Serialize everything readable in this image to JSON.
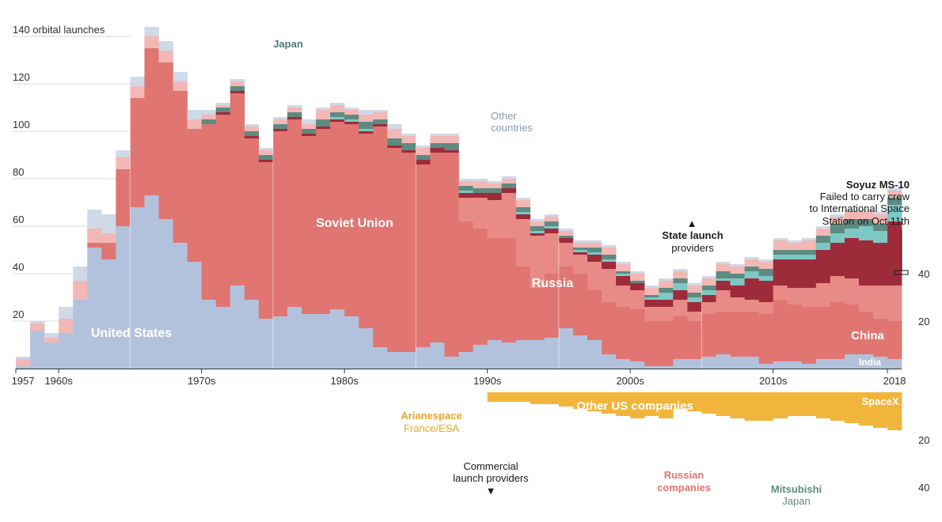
{
  "chart_data": {
    "type": "area",
    "title": "",
    "years": [
      1957,
      1958,
      1959,
      1960,
      1961,
      1962,
      1963,
      1964,
      1965,
      1966,
      1967,
      1968,
      1969,
      1970,
      1971,
      1972,
      1973,
      1974,
      1975,
      1976,
      1977,
      1978,
      1979,
      1980,
      1981,
      1982,
      1983,
      1984,
      1985,
      1986,
      1987,
      1988,
      1989,
      1990,
      1991,
      1992,
      1993,
      1994,
      1995,
      1996,
      1997,
      1998,
      1999,
      2000,
      2001,
      2002,
      2003,
      2004,
      2005,
      2006,
      2007,
      2008,
      2009,
      2010,
      2011,
      2012,
      2013,
      2014,
      2015,
      2016,
      2017,
      2018
    ],
    "state": {
      "ylabel": "140 orbital launches",
      "ylim": [
        0,
        140
      ],
      "yticks": [
        20,
        40,
        60,
        80,
        100,
        120
      ],
      "right_yticks": [
        20,
        40
      ],
      "series": [
        {
          "name": "United States",
          "color": "#b3c2dc",
          "values": [
            1,
            16,
            11,
            15,
            29,
            51,
            46,
            60,
            68,
            73,
            63,
            53,
            45,
            29,
            26,
            35,
            29,
            21,
            22,
            26,
            23,
            23,
            25,
            22,
            17,
            9,
            7,
            7,
            9,
            11,
            5,
            7,
            10,
            12,
            11,
            12,
            12,
            13,
            17,
            14,
            12,
            6,
            4,
            3,
            1,
            1,
            4,
            4,
            5,
            6,
            5,
            5,
            2,
            3,
            3,
            2,
            4,
            4,
            6,
            6,
            5,
            4
          ]
        },
        {
          "name": "Soviet Union",
          "color": "#e07571",
          "values": [
            0,
            0,
            0,
            0,
            0,
            2,
            7,
            24,
            46,
            62,
            66,
            64,
            56,
            74,
            81,
            81,
            68,
            66,
            78,
            79,
            75,
            78,
            79,
            81,
            82,
            93,
            86,
            84,
            77,
            80,
            86,
            55,
            49,
            43,
            44,
            31,
            22,
            27,
            26,
            26,
            21,
            22,
            22,
            22,
            19,
            19,
            18,
            16,
            18,
            18,
            19,
            19,
            21,
            26,
            24,
            24,
            22,
            24,
            21,
            18,
            16,
            16
          ]
        },
        {
          "name": "Russia",
          "color": "#e88b87",
          "values": [
            0,
            0,
            0,
            0,
            0,
            0,
            0,
            0,
            0,
            0,
            0,
            0,
            0,
            0,
            0,
            0,
            0,
            0,
            0,
            0,
            0,
            0,
            0,
            0,
            0,
            0,
            0,
            0,
            0,
            0,
            0,
            10,
            13,
            16,
            19,
            20,
            22,
            17,
            10,
            8,
            12,
            14,
            9,
            8,
            6,
            6,
            7,
            4,
            5,
            9,
            6,
            5,
            5,
            6,
            7,
            8,
            10,
            11,
            11,
            11,
            14,
            15
          ]
        },
        {
          "name": "China",
          "color": "#9e2b3a",
          "values": [
            0,
            0,
            0,
            0,
            0,
            0,
            0,
            0,
            0,
            0,
            0,
            0,
            0,
            0,
            1,
            1,
            1,
            1,
            1,
            1,
            1,
            1,
            1,
            1,
            1,
            1,
            1,
            1,
            2,
            2,
            1,
            2,
            2,
            3,
            2,
            2,
            1,
            2,
            2,
            1,
            3,
            3,
            4,
            3,
            3,
            3,
            4,
            4,
            3,
            4,
            5,
            9,
            9,
            11,
            12,
            12,
            14,
            14,
            17,
            19,
            18,
            27
          ]
        },
        {
          "name": "India",
          "color": "#7dc7c5",
          "values": [
            0,
            0,
            0,
            0,
            0,
            0,
            0,
            0,
            0,
            0,
            0,
            0,
            0,
            0,
            0,
            0,
            0,
            0,
            0,
            0,
            0,
            0,
            1,
            1,
            1,
            0,
            0,
            0,
            0,
            0,
            0,
            1,
            0,
            0,
            0,
            1,
            1,
            1,
            0,
            1,
            1,
            1,
            1,
            0,
            1,
            3,
            3,
            2,
            2,
            1,
            3,
            3,
            2,
            2,
            2,
            2,
            3,
            4,
            4,
            6,
            5,
            7
          ]
        },
        {
          "name": "Japan",
          "color": "#5e8a80",
          "values": [
            0,
            0,
            0,
            0,
            0,
            0,
            0,
            0,
            0,
            0,
            0,
            0,
            0,
            2,
            2,
            2,
            2,
            2,
            2,
            2,
            2,
            3,
            2,
            2,
            3,
            2,
            3,
            3,
            2,
            2,
            3,
            2,
            2,
            2,
            2,
            2,
            2,
            2,
            1,
            1,
            2,
            2,
            1,
            1,
            1,
            2,
            2,
            2,
            2,
            3,
            2,
            2,
            3,
            2,
            2,
            2,
            3,
            4,
            4,
            3,
            3,
            3
          ]
        },
        {
          "name": "Other countries",
          "color": "#f2b8b6",
          "values": [
            3,
            3,
            2,
            6,
            8,
            6,
            4,
            5,
            5,
            5,
            5,
            4,
            4,
            2,
            1,
            2,
            2,
            2,
            2,
            2,
            2,
            4,
            3,
            2,
            3,
            3,
            4,
            3,
            3,
            3,
            3,
            2,
            3,
            2,
            2,
            3,
            2,
            2,
            2,
            2,
            2,
            3,
            3,
            3,
            3,
            3,
            3,
            3,
            3,
            3,
            3,
            3,
            3,
            4,
            3,
            4,
            3,
            3,
            3,
            3,
            4,
            3
          ]
        },
        {
          "name": "Other countries (light)",
          "color": "#cfd9e8",
          "values": [
            1,
            1,
            2,
            5,
            6,
            8,
            8,
            3,
            4,
            4,
            4,
            4,
            4,
            2,
            1,
            1,
            1,
            1,
            1,
            1,
            2,
            1,
            1,
            1,
            2,
            1,
            2,
            1,
            1,
            1,
            1,
            1,
            1,
            1,
            1,
            1,
            1,
            1,
            1,
            1,
            1,
            1,
            1,
            1,
            1,
            1,
            1,
            1,
            1,
            1,
            1,
            1,
            1,
            1,
            1,
            1,
            1,
            1,
            1,
            1,
            1,
            1
          ]
        }
      ]
    },
    "commercial": {
      "yticks": [
        20,
        40
      ],
      "series": [
        {
          "name": "Arianespace",
          "color": "#f2b53c",
          "values": [
            0,
            0,
            0,
            0,
            0,
            0,
            0,
            0,
            0,
            0,
            0,
            0,
            0,
            0,
            0,
            0,
            0,
            0,
            0,
            0,
            0,
            0,
            0,
            0,
            0,
            0,
            0,
            0,
            0,
            0,
            0,
            0,
            0,
            4,
            4,
            4,
            5,
            5,
            6,
            7,
            8,
            9,
            10,
            11,
            10,
            11,
            7,
            8,
            9,
            10,
            11,
            12,
            12,
            11,
            10,
            10,
            11,
            12,
            13,
            14,
            15,
            16
          ]
        },
        {
          "name": "Other US companies",
          "color": "#b3c2dc",
          "values": [
            0,
            0,
            0,
            0,
            0,
            0,
            0,
            0,
            0,
            0,
            0,
            0,
            0,
            0,
            0,
            0,
            0,
            0,
            0,
            0,
            0,
            0,
            0,
            0,
            0,
            0,
            0,
            0,
            0,
            0,
            0,
            0,
            0,
            0,
            0,
            0,
            0,
            0,
            0,
            0,
            0,
            0,
            0,
            0,
            0,
            0,
            0,
            0,
            0,
            0,
            0,
            0,
            0,
            0,
            0,
            0,
            0,
            0,
            0,
            0,
            0,
            0
          ]
        },
        {
          "name": "Russian companies",
          "color": "#e88b87",
          "values": [
            0,
            0,
            0,
            0,
            0,
            0,
            0,
            0,
            0,
            0,
            0,
            0,
            0,
            0,
            0,
            0,
            0,
            0,
            0,
            0,
            0,
            0,
            0,
            0,
            0,
            0,
            0,
            0,
            0,
            0,
            0,
            0,
            0,
            0,
            0,
            0,
            0,
            0,
            0,
            0,
            0,
            0,
            0,
            0,
            0,
            0,
            0,
            0,
            0,
            0,
            0,
            0,
            0,
            0,
            0,
            0,
            0,
            0,
            0,
            0,
            0,
            0
          ]
        },
        {
          "name": "SpaceX",
          "color": "#1f4e79",
          "values": [
            0,
            0,
            0,
            0,
            0,
            0,
            0,
            0,
            0,
            0,
            0,
            0,
            0,
            0,
            0,
            0,
            0,
            0,
            0,
            0,
            0,
            0,
            0,
            0,
            0,
            0,
            0,
            0,
            0,
            0,
            0,
            0,
            0,
            0,
            0,
            0,
            0,
            0,
            0,
            0,
            0,
            0,
            0,
            0,
            0,
            0,
            0,
            0,
            0,
            0,
            0,
            0,
            0,
            0,
            0,
            0,
            0,
            0,
            0,
            0,
            0,
            0
          ]
        }
      ]
    },
    "xticks": [
      {
        "label": "1957",
        "year": 1957
      },
      {
        "label": "1960s",
        "year": 1960
      },
      {
        "label": "1970s",
        "year": 1970
      },
      {
        "label": "1980s",
        "year": 1980
      },
      {
        "label": "1990s",
        "year": 1990
      },
      {
        "label": "2000s",
        "year": 2000
      },
      {
        "label": "2010s",
        "year": 2010
      },
      {
        "label": "2018",
        "year": 2018
      }
    ]
  },
  "labels": {
    "united_states": "United States",
    "soviet_union": "Soviet Union",
    "russia": "Russia",
    "china": "China",
    "india": "India",
    "japan": "Japan",
    "other_countries_1": "Other",
    "other_countries_2": "countries",
    "state_arrow": "▲",
    "state_1": "State launch",
    "state_2": "providers",
    "soyuz_title": "Soyuz MS-10",
    "soyuz_1": "Failed to carry crew",
    "soyuz_2": "to International Space",
    "soyuz_3": "Station on Oct 11th",
    "other_us": "Other US companies",
    "spacex": "SpaceX",
    "arianespace": "Arianespace",
    "arianespace_sub": "France/ESA",
    "commercial_1": "Commercial",
    "commercial_2": "launch providers",
    "commercial_arrow": "▼",
    "russian_companies_1": "Russian",
    "russian_companies_2": "companies",
    "mitsubishi": "Mitsubishi",
    "mitsubishi_sub": "Japan"
  },
  "colors": {
    "us": "#b3c2dc",
    "soviet": "#e07571",
    "russia": "#e88b87",
    "china": "#9e2b3a",
    "india": "#7dc7c5",
    "japan": "#5e8a80",
    "other_label": "#8a9bb0",
    "arianespace": "#f2b53c",
    "russian_co": "#e07571",
    "spacex": "#1f4e79",
    "us_commercial_dark": "#5679a8"
  }
}
